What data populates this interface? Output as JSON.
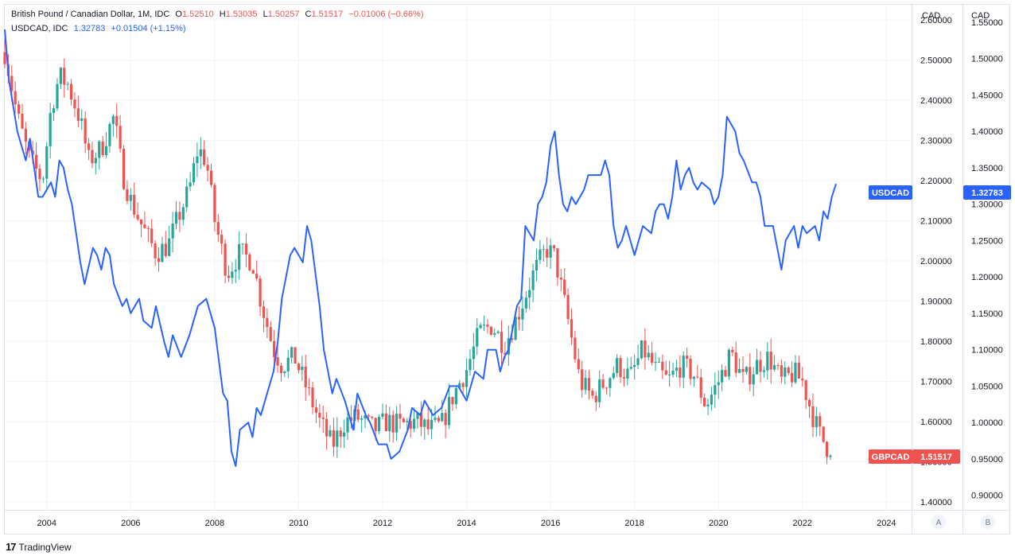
{
  "legend": {
    "gbp": {
      "name": "British Pound / Canadian Dollar, 1M, IDC",
      "o_label": "O",
      "o": "1.52510",
      "h_label": "H",
      "h": "1.53035",
      "l_label": "L",
      "l": "1.50257",
      "c_label": "C",
      "c": "1.51517",
      "change": "−0.01006 (−0.66%)"
    },
    "usd": {
      "name": "USDCAD, IDC",
      "value": "1.32783",
      "change": "+0.01504 (+1.15%)"
    }
  },
  "axes": {
    "left_scale_title": "CAD",
    "right_scale_title": "CAD",
    "scale_a_button": "A",
    "scale_b_button": "B"
  },
  "badges": {
    "usd_name": "USDCAD",
    "usd_value": "1.32783",
    "gbp_name": "GBPCAD",
    "gbp_value": "1.51517"
  },
  "branding": {
    "logo_text": "TradingView"
  },
  "colors": {
    "up": "#26a69a",
    "down": "#ef5350",
    "line": "#2962ff",
    "grid": "#f0f3fa",
    "text": "#131722",
    "badge_blue": "#2962ff",
    "badge_red": "#ef5350"
  },
  "chart_data": [
    {
      "type": "candlestick",
      "series_name": "GBPCAD",
      "scale": "A",
      "ylim": [
        1.38,
        2.64
      ],
      "yticks": [
        1.4,
        1.5,
        1.6,
        1.7,
        1.8,
        1.9,
        2.0,
        2.1,
        2.2,
        2.3,
        2.4,
        2.5,
        2.6
      ],
      "ytick_labels": [
        "1.40000",
        "1.50000",
        "1.60000",
        "1.70000",
        "1.80000",
        "1.90000",
        "2.00000",
        "2.10000",
        "2.20000",
        "2.30000",
        "2.40000",
        "2.50000",
        "2.60000"
      ],
      "xlim": [
        2003.0,
        2024.6
      ],
      "xticks": [
        2004,
        2006,
        2008,
        2010,
        2012,
        2014,
        2016,
        2018,
        2020,
        2022,
        2024
      ],
      "xtick_labels": [
        "2004",
        "2006",
        "2008",
        "2010",
        "2012",
        "2014",
        "2016",
        "2018",
        "2020",
        "2022",
        "2024"
      ],
      "anchors": [
        [
          2003.0,
          2.52
        ],
        [
          2003.1,
          2.47
        ],
        [
          2003.3,
          2.36
        ],
        [
          2003.6,
          2.25
        ],
        [
          2003.9,
          2.2
        ],
        [
          2004.1,
          2.38
        ],
        [
          2004.3,
          2.46
        ],
        [
          2004.5,
          2.44
        ],
        [
          2004.8,
          2.35
        ],
        [
          2005.0,
          2.25
        ],
        [
          2005.3,
          2.28
        ],
        [
          2005.6,
          2.36
        ],
        [
          2005.8,
          2.22
        ],
        [
          2006.0,
          2.15
        ],
        [
          2006.3,
          2.08
        ],
        [
          2006.6,
          2.02
        ],
        [
          2006.9,
          2.04
        ],
        [
          2007.1,
          2.1
        ],
        [
          2007.4,
          2.18
        ],
        [
          2007.6,
          2.28
        ],
        [
          2007.8,
          2.25
        ],
        [
          2008.0,
          2.1
        ],
        [
          2008.3,
          1.97
        ],
        [
          2008.6,
          2.02
        ],
        [
          2008.9,
          2.0
        ],
        [
          2009.1,
          1.9
        ],
        [
          2009.4,
          1.78
        ],
        [
          2009.6,
          1.74
        ],
        [
          2009.9,
          1.76
        ],
        [
          2010.2,
          1.68
        ],
        [
          2010.5,
          1.6
        ],
        [
          2010.8,
          1.54
        ],
        [
          2011.1,
          1.6
        ],
        [
          2011.4,
          1.61
        ],
        [
          2011.8,
          1.58
        ],
        [
          2012.1,
          1.6
        ],
        [
          2012.4,
          1.59
        ],
        [
          2012.8,
          1.6
        ],
        [
          2013.1,
          1.58
        ],
        [
          2013.4,
          1.59
        ],
        [
          2013.7,
          1.67
        ],
        [
          2014.0,
          1.73
        ],
        [
          2014.3,
          1.82
        ],
        [
          2014.6,
          1.84
        ],
        [
          2014.9,
          1.79
        ],
        [
          2015.2,
          1.86
        ],
        [
          2015.6,
          1.97
        ],
        [
          2015.9,
          2.03
        ],
        [
          2016.1,
          2.01
        ],
        [
          2016.4,
          1.86
        ],
        [
          2016.7,
          1.7
        ],
        [
          2017.0,
          1.66
        ],
        [
          2017.3,
          1.7
        ],
        [
          2017.6,
          1.74
        ],
        [
          2017.9,
          1.71
        ],
        [
          2018.2,
          1.78
        ],
        [
          2018.5,
          1.73
        ],
        [
          2018.8,
          1.7
        ],
        [
          2019.1,
          1.74
        ],
        [
          2019.4,
          1.72
        ],
        [
          2019.7,
          1.64
        ],
        [
          2020.0,
          1.7
        ],
        [
          2020.3,
          1.77
        ],
        [
          2020.6,
          1.7
        ],
        [
          2020.9,
          1.74
        ],
        [
          2021.2,
          1.76
        ],
        [
          2021.5,
          1.7
        ],
        [
          2021.8,
          1.72
        ],
        [
          2022.0,
          1.7
        ],
        [
          2022.2,
          1.63
        ],
        [
          2022.4,
          1.57
        ],
        [
          2022.7,
          1.515
        ]
      ]
    },
    {
      "type": "line",
      "series_name": "USDCAD",
      "scale": "B",
      "ylim": [
        0.88,
        1.575
      ],
      "yticks": [
        0.9,
        0.95,
        1.0,
        1.05,
        1.1,
        1.15,
        1.2,
        1.25,
        1.3,
        1.35,
        1.4,
        1.45,
        1.5,
        1.55
      ],
      "ytick_labels": [
        "0.90000",
        "0.95000",
        "1.00000",
        "1.05000",
        "1.10000",
        "1.15000",
        "1.20000",
        "1.25000",
        "1.30000",
        "1.35000",
        "1.40000",
        "1.45000",
        "1.50000",
        "1.55000"
      ],
      "points": [
        [
          2003.0,
          1.54
        ],
        [
          2003.1,
          1.47
        ],
        [
          2003.3,
          1.4
        ],
        [
          2003.5,
          1.36
        ],
        [
          2003.6,
          1.39
        ],
        [
          2003.8,
          1.31
        ],
        [
          2003.9,
          1.31
        ],
        [
          2004.1,
          1.33
        ],
        [
          2004.2,
          1.31
        ],
        [
          2004.3,
          1.36
        ],
        [
          2004.4,
          1.35
        ],
        [
          2004.5,
          1.32
        ],
        [
          2004.6,
          1.3
        ],
        [
          2004.8,
          1.22
        ],
        [
          2004.9,
          1.19
        ],
        [
          2005.1,
          1.24
        ],
        [
          2005.2,
          1.23
        ],
        [
          2005.3,
          1.21
        ],
        [
          2005.4,
          1.24
        ],
        [
          2005.5,
          1.23
        ],
        [
          2005.6,
          1.19
        ],
        [
          2005.8,
          1.16
        ],
        [
          2005.9,
          1.17
        ],
        [
          2006.0,
          1.15
        ],
        [
          2006.2,
          1.17
        ],
        [
          2006.3,
          1.14
        ],
        [
          2006.5,
          1.13
        ],
        [
          2006.6,
          1.16
        ],
        [
          2006.8,
          1.11
        ],
        [
          2006.9,
          1.09
        ],
        [
          2007.0,
          1.12
        ],
        [
          2007.2,
          1.09
        ],
        [
          2007.4,
          1.12
        ],
        [
          2007.6,
          1.16
        ],
        [
          2007.8,
          1.17
        ],
        [
          2008.0,
          1.13
        ],
        [
          2008.2,
          1.04
        ],
        [
          2008.3,
          1.03
        ],
        [
          2008.4,
          0.96
        ],
        [
          2008.5,
          0.94
        ],
        [
          2008.6,
          0.99
        ],
        [
          2008.8,
          1.0
        ],
        [
          2008.9,
          0.98
        ],
        [
          2009.0,
          1.02
        ],
        [
          2009.1,
          1.01
        ],
        [
          2009.3,
          1.05
        ],
        [
          2009.4,
          1.07
        ],
        [
          2009.5,
          1.11
        ],
        [
          2009.6,
          1.17
        ],
        [
          2009.8,
          1.23
        ],
        [
          2009.9,
          1.24
        ],
        [
          2010.1,
          1.22
        ],
        [
          2010.2,
          1.27
        ],
        [
          2010.3,
          1.25
        ],
        [
          2010.5,
          1.16
        ],
        [
          2010.6,
          1.1
        ],
        [
          2010.7,
          1.07
        ],
        [
          2010.8,
          1.04
        ],
        [
          2010.9,
          1.06
        ],
        [
          2011.1,
          1.03
        ],
        [
          2011.3,
          0.99
        ],
        [
          2011.4,
          1.04
        ],
        [
          2011.6,
          1.01
        ],
        [
          2011.7,
          1.0
        ],
        [
          2011.9,
          0.97
        ],
        [
          2012.1,
          0.97
        ],
        [
          2012.2,
          0.95
        ],
        [
          2012.4,
          0.96
        ],
        [
          2012.6,
          0.99
        ],
        [
          2012.7,
          1.02
        ],
        [
          2012.9,
          1.01
        ],
        [
          2013.0,
          1.03
        ],
        [
          2013.2,
          1.01
        ],
        [
          2013.4,
          1.02
        ],
        [
          2013.6,
          1.05
        ],
        [
          2013.8,
          1.05
        ],
        [
          2014.0,
          1.03
        ],
        [
          2014.2,
          1.07
        ],
        [
          2014.4,
          1.06
        ],
        [
          2014.5,
          1.1
        ],
        [
          2014.7,
          1.1
        ],
        [
          2014.8,
          1.07
        ],
        [
          2014.9,
          1.09
        ],
        [
          2015.0,
          1.1
        ],
        [
          2015.2,
          1.16
        ],
        [
          2015.3,
          1.17
        ],
        [
          2015.4,
          1.27
        ],
        [
          2015.6,
          1.25
        ],
        [
          2015.7,
          1.3
        ],
        [
          2015.8,
          1.31
        ],
        [
          2015.9,
          1.33
        ],
        [
          2016.0,
          1.38
        ],
        [
          2016.1,
          1.4
        ],
        [
          2016.2,
          1.34
        ],
        [
          2016.3,
          1.3
        ],
        [
          2016.4,
          1.29
        ],
        [
          2016.5,
          1.31
        ],
        [
          2016.6,
          1.3
        ],
        [
          2016.8,
          1.32
        ],
        [
          2016.9,
          1.34
        ],
        [
          2017.0,
          1.34
        ],
        [
          2017.2,
          1.34
        ],
        [
          2017.3,
          1.36
        ],
        [
          2017.4,
          1.34
        ],
        [
          2017.5,
          1.27
        ],
        [
          2017.6,
          1.24
        ],
        [
          2017.7,
          1.25
        ],
        [
          2017.8,
          1.27
        ],
        [
          2018.0,
          1.23
        ],
        [
          2018.2,
          1.27
        ],
        [
          2018.4,
          1.26
        ],
        [
          2018.5,
          1.29
        ],
        [
          2018.6,
          1.3
        ],
        [
          2018.7,
          1.3
        ],
        [
          2018.8,
          1.28
        ],
        [
          2018.9,
          1.31
        ],
        [
          2019.0,
          1.36
        ],
        [
          2019.1,
          1.32
        ],
        [
          2019.2,
          1.34
        ],
        [
          2019.3,
          1.35
        ],
        [
          2019.4,
          1.33
        ],
        [
          2019.5,
          1.32
        ],
        [
          2019.6,
          1.33
        ],
        [
          2019.8,
          1.32
        ],
        [
          2019.9,
          1.3
        ],
        [
          2020.0,
          1.31
        ],
        [
          2020.1,
          1.34
        ],
        [
          2020.2,
          1.42
        ],
        [
          2020.4,
          1.4
        ],
        [
          2020.5,
          1.37
        ],
        [
          2020.6,
          1.36
        ],
        [
          2020.8,
          1.33
        ],
        [
          2020.9,
          1.33
        ],
        [
          2021.0,
          1.31
        ],
        [
          2021.1,
          1.27
        ],
        [
          2021.3,
          1.27
        ],
        [
          2021.4,
          1.24
        ],
        [
          2021.5,
          1.21
        ],
        [
          2021.6,
          1.25
        ],
        [
          2021.7,
          1.26
        ],
        [
          2021.8,
          1.27
        ],
        [
          2021.9,
          1.24
        ],
        [
          2022.0,
          1.27
        ],
        [
          2022.1,
          1.26
        ],
        [
          2022.3,
          1.27
        ],
        [
          2022.4,
          1.25
        ],
        [
          2022.5,
          1.29
        ],
        [
          2022.6,
          1.28
        ],
        [
          2022.7,
          1.31
        ],
        [
          2022.8,
          1.32783
        ]
      ]
    }
  ]
}
